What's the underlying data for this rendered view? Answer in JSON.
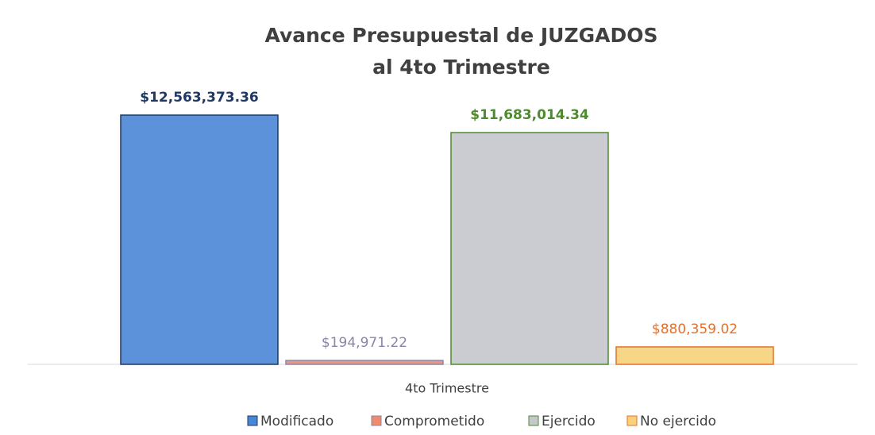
{
  "chart_data": {
    "type": "bar",
    "title": [
      "Avance Presupuestal de JUZGADOS",
      "al 4to Trimestre"
    ],
    "categories": [
      "4to Trimestre"
    ],
    "series": [
      {
        "name": "Modificado",
        "color": "#4a86d6",
        "label_color": "#1f3864",
        "values": [
          12563373.36
        ],
        "value_labels": [
          "$12,563,373.36"
        ]
      },
      {
        "name": "Comprometido",
        "color": "#f08a6c",
        "label_color": "#8a86a8",
        "values": [
          194971.22
        ],
        "value_labels": [
          "$194,971.22"
        ]
      },
      {
        "name": "Ejercido",
        "color": "#c4c7cc",
        "label_color": "#4f8a2e",
        "values": [
          11683014.34
        ],
        "value_labels": [
          "$11,683,014.34"
        ]
      },
      {
        "name": "No ejercido",
        "color": "#f7d27a",
        "label_color": "#e4702a",
        "values": [
          880359.02
        ],
        "value_labels": [
          "$880,359.02"
        ]
      }
    ]
  }
}
